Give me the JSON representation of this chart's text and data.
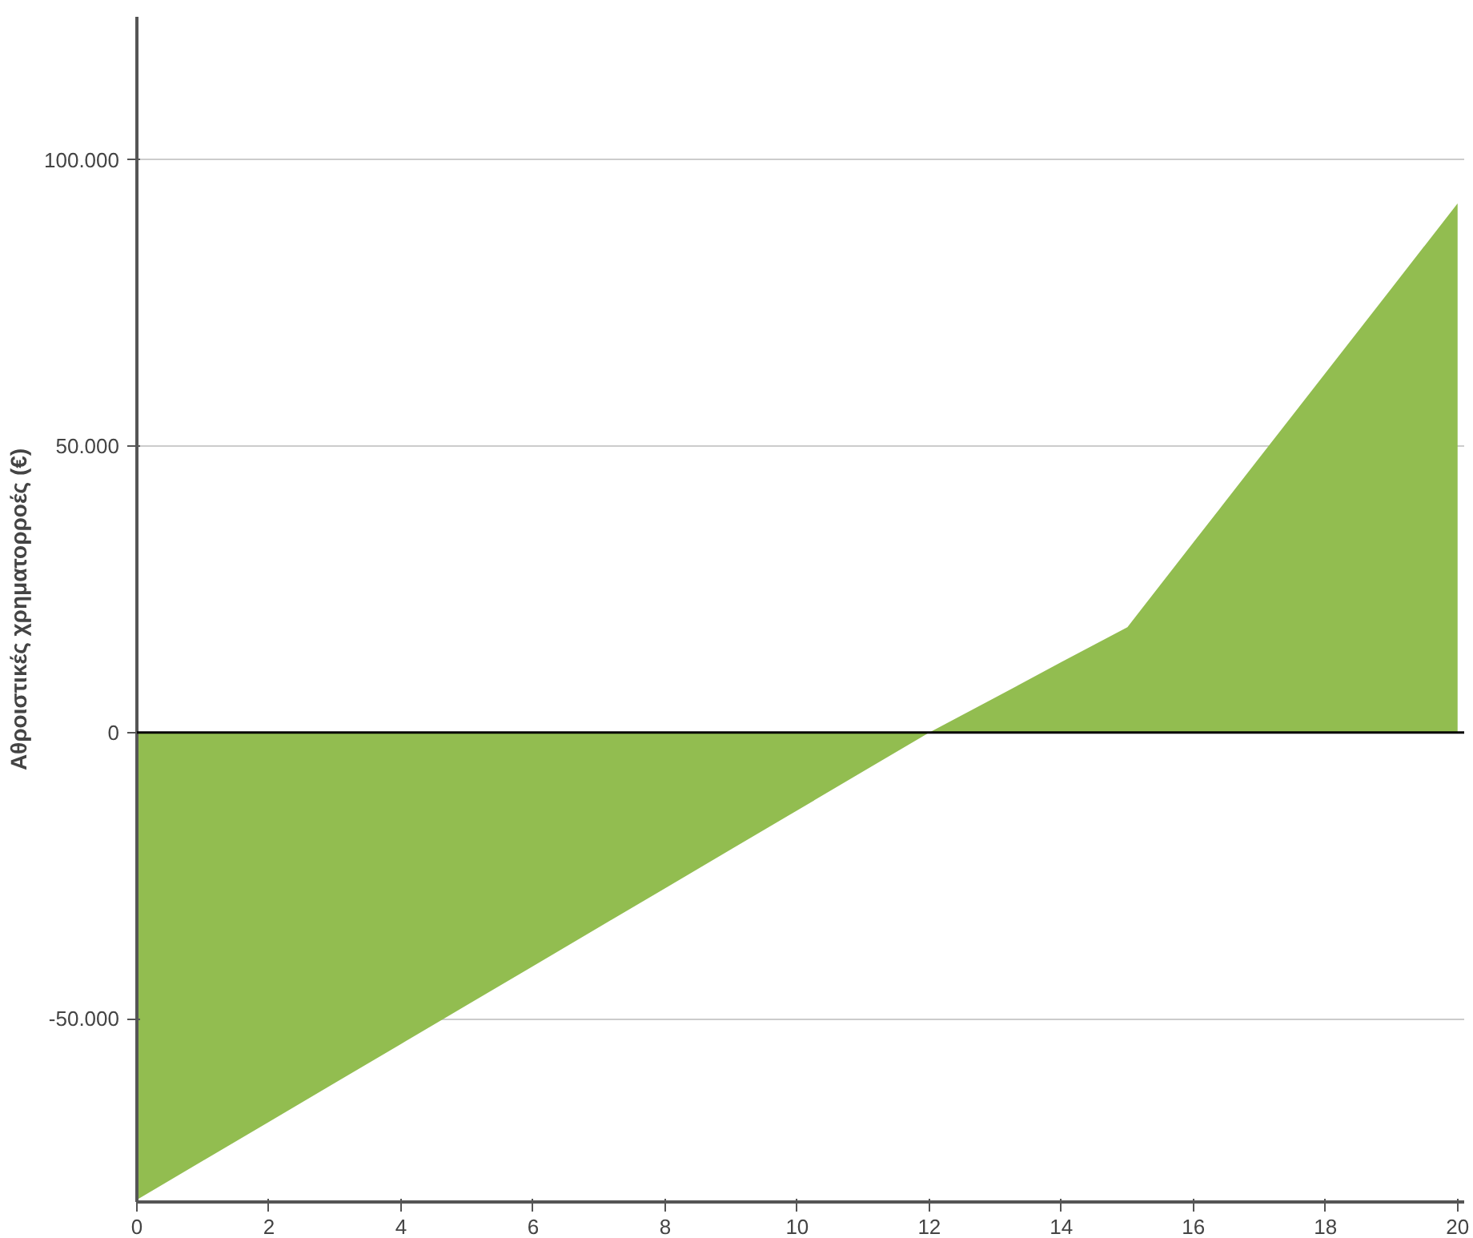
{
  "chart_data": {
    "type": "area",
    "ylabel": "Αθροιστικές χρηματορροές (€)",
    "x": [
      0,
      1,
      2,
      3,
      4,
      5,
      6,
      7,
      8,
      9,
      10,
      11,
      12,
      13,
      14,
      15,
      16,
      17,
      18,
      19,
      20
    ],
    "series": [
      {
        "color": "#92bd50",
        "values": [
          -81600,
          -74800,
          -68000,
          -61200,
          -54400,
          -47600,
          -40800,
          -34000,
          -27200,
          -20400,
          -13600,
          -6800,
          0,
          6100,
          12300,
          18400,
          33200,
          48000,
          62800,
          77600,
          92400
        ]
      }
    ],
    "xlim": [
      0,
      20.1
    ],
    "xticks": [
      0,
      2,
      4,
      6,
      8,
      10,
      12,
      14,
      16,
      18,
      20
    ],
    "ylim": [
      -82000,
      125000
    ],
    "yticks": [
      {
        "value": -50000,
        "label": "-50.000"
      },
      {
        "value": 0,
        "label": "0"
      },
      {
        "value": 50000,
        "label": "50.000"
      },
      {
        "value": 100000,
        "label": "100.000"
      }
    ],
    "ref_lines": [
      {
        "axis": "y",
        "value": 0,
        "color": "#000000"
      }
    ],
    "grid": "y"
  }
}
